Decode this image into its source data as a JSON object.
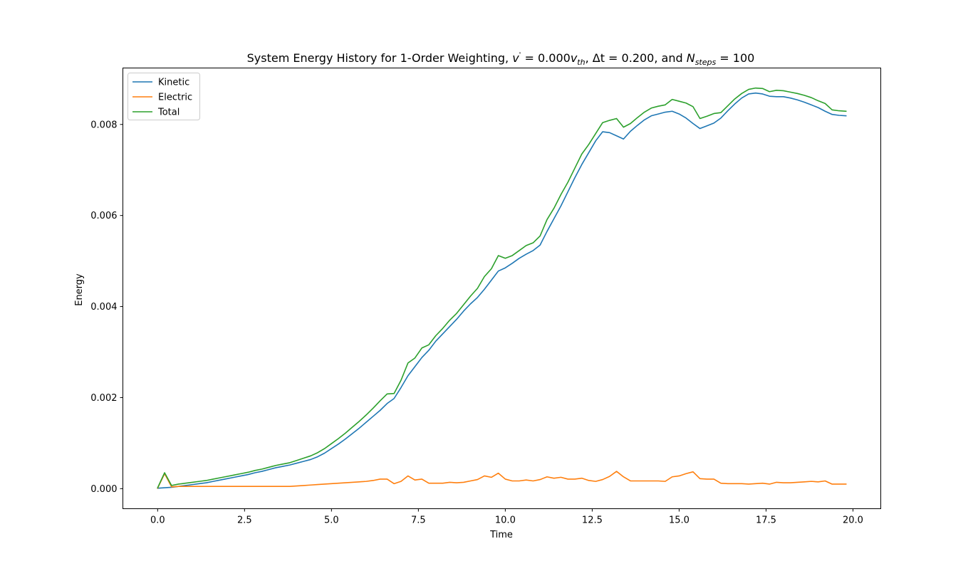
{
  "chart_data": {
    "type": "line",
    "title": {
      "prefix": "System Energy History for 1-Order Weighting, ",
      "v_symbol": "v",
      "v_sup": "'",
      "v_eq": " = 0.000",
      "v_unit": "v",
      "v_unit_sub": "th",
      "sep1": ", ",
      "dt_symbol": "Δt",
      "dt_eq": " = 0.200",
      "sep2": ", and ",
      "n_symbol": "N",
      "n_sub": "steps",
      "n_eq": " = 100"
    },
    "xlabel": "Time",
    "ylabel": "Energy",
    "xlim": [
      -1.0,
      20.8
    ],
    "ylim": [
      -0.00044,
      0.00924
    ],
    "xticks": [
      0.0,
      2.5,
      5.0,
      7.5,
      10.0,
      12.5,
      15.0,
      17.5,
      20.0
    ],
    "xtick_labels": [
      "0.0",
      "2.5",
      "5.0",
      "7.5",
      "10.0",
      "12.5",
      "15.0",
      "17.5",
      "20.0"
    ],
    "yticks": [
      0.0,
      0.002,
      0.004,
      0.006,
      0.008
    ],
    "ytick_labels": [
      "0.000",
      "0.002",
      "0.004",
      "0.006",
      "0.008"
    ],
    "grid": false,
    "legend_position": "top-left",
    "x": [
      0.0,
      0.2,
      0.4,
      0.6,
      0.8,
      1.0,
      1.2,
      1.4,
      1.6,
      1.8,
      2.0,
      2.2,
      2.4,
      2.6,
      2.8,
      3.0,
      3.2,
      3.4,
      3.6,
      3.8,
      4.0,
      4.2,
      4.4,
      4.6,
      4.8,
      5.0,
      5.2,
      5.4,
      5.6,
      5.8,
      6.0,
      6.2,
      6.4,
      6.6,
      6.8,
      7.0,
      7.2,
      7.4,
      7.6,
      7.8,
      8.0,
      8.2,
      8.4,
      8.6,
      8.8,
      9.0,
      9.2,
      9.4,
      9.6,
      9.8,
      10.0,
      10.2,
      10.4,
      10.6,
      10.8,
      11.0,
      11.2,
      11.4,
      11.6,
      11.8,
      12.0,
      12.2,
      12.4,
      12.6,
      12.8,
      13.0,
      13.2,
      13.4,
      13.6,
      13.8,
      14.0,
      14.2,
      14.4,
      14.6,
      14.8,
      15.0,
      15.2,
      15.4,
      15.6,
      15.8,
      16.0,
      16.2,
      16.4,
      16.6,
      16.8,
      17.0,
      17.2,
      17.4,
      17.6,
      17.8,
      18.0,
      18.2,
      18.4,
      18.6,
      18.8,
      19.0,
      19.2,
      19.4,
      19.6,
      19.8
    ],
    "series": [
      {
        "name": "Kinetic",
        "color": "#1f77b4",
        "values": [
          1e-05,
          2e-05,
          3e-05,
          5e-05,
          7e-05,
          9e-05,
          0.00011,
          0.00013,
          0.00016,
          0.00019,
          0.00022,
          0.00025,
          0.00028,
          0.00031,
          0.00035,
          0.00038,
          0.00042,
          0.00046,
          0.00049,
          0.00052,
          0.00056,
          0.0006,
          0.00064,
          0.0007,
          0.00078,
          0.00088,
          0.00098,
          0.00109,
          0.00121,
          0.00133,
          0.00146,
          0.00159,
          0.00172,
          0.00187,
          0.00198,
          0.00222,
          0.00248,
          0.00268,
          0.00288,
          0.00304,
          0.00324,
          0.0034,
          0.00356,
          0.00372,
          0.0039,
          0.00406,
          0.0042,
          0.00438,
          0.00458,
          0.00478,
          0.00485,
          0.00495,
          0.00506,
          0.00515,
          0.00523,
          0.00535,
          0.00565,
          0.00593,
          0.00621,
          0.00652,
          0.00683,
          0.00712,
          0.00738,
          0.00764,
          0.00784,
          0.00782,
          0.00775,
          0.00768,
          0.00785,
          0.00798,
          0.0081,
          0.00819,
          0.00823,
          0.00827,
          0.00829,
          0.00823,
          0.00814,
          0.00802,
          0.00791,
          0.00797,
          0.00803,
          0.00814,
          0.0083,
          0.00845,
          0.00858,
          0.00867,
          0.00869,
          0.00867,
          0.00862,
          0.00861,
          0.00861,
          0.00858,
          0.00854,
          0.00849,
          0.00843,
          0.00837,
          0.00829,
          0.00822,
          0.0082,
          0.00819
        ]
      },
      {
        "name": "Electric",
        "color": "#ff7f0e",
        "values": [
          1e-05,
          0.00033,
          4e-05,
          5e-05,
          5e-05,
          5e-05,
          5e-05,
          5e-05,
          5e-05,
          5e-05,
          5e-05,
          5e-05,
          5e-05,
          5e-05,
          5e-05,
          5e-05,
          5e-05,
          5e-05,
          5e-05,
          5e-05,
          6e-05,
          7e-05,
          8e-05,
          9e-05,
          0.0001,
          0.00011,
          0.00012,
          0.00013,
          0.00014,
          0.00015,
          0.00016,
          0.00018,
          0.00021,
          0.00021,
          0.00011,
          0.00016,
          0.00028,
          0.00019,
          0.00021,
          0.00012,
          0.00012,
          0.00012,
          0.00014,
          0.00013,
          0.00014,
          0.00017,
          0.0002,
          0.00028,
          0.00025,
          0.00034,
          0.00021,
          0.00017,
          0.00017,
          0.00019,
          0.00017,
          0.0002,
          0.00026,
          0.00023,
          0.00025,
          0.00021,
          0.00021,
          0.00023,
          0.00018,
          0.00016,
          0.0002,
          0.00027,
          0.00038,
          0.00026,
          0.00017,
          0.00017,
          0.00017,
          0.00017,
          0.00017,
          0.00016,
          0.00026,
          0.00028,
          0.00033,
          0.00037,
          0.00022,
          0.00021,
          0.00021,
          0.00012,
          0.00011,
          0.00011,
          0.00011,
          0.0001,
          0.00011,
          0.00012,
          0.0001,
          0.00014,
          0.00013,
          0.00013,
          0.00014,
          0.00015,
          0.00016,
          0.00015,
          0.00017,
          0.0001,
          0.0001,
          0.0001
        ]
      },
      {
        "name": "Total",
        "color": "#2ca02c",
        "values": [
          2e-05,
          0.00035,
          7e-05,
          0.0001,
          0.00012,
          0.00014,
          0.00016,
          0.00018,
          0.00021,
          0.00024,
          0.00027,
          0.0003,
          0.00033,
          0.00036,
          0.0004,
          0.00043,
          0.00047,
          0.00051,
          0.00054,
          0.00057,
          0.00062,
          0.00067,
          0.00072,
          0.00079,
          0.00088,
          0.00099,
          0.0011,
          0.00122,
          0.00135,
          0.00148,
          0.00162,
          0.00177,
          0.00193,
          0.00208,
          0.00209,
          0.00238,
          0.00276,
          0.00287,
          0.00309,
          0.00316,
          0.00336,
          0.00352,
          0.0037,
          0.00385,
          0.00404,
          0.00423,
          0.0044,
          0.00466,
          0.00483,
          0.00512,
          0.00506,
          0.00512,
          0.00523,
          0.00534,
          0.0054,
          0.00555,
          0.00591,
          0.00616,
          0.00646,
          0.00673,
          0.00704,
          0.00735,
          0.00756,
          0.0078,
          0.00804,
          0.00809,
          0.00813,
          0.00794,
          0.00802,
          0.00815,
          0.00827,
          0.00836,
          0.0084,
          0.00843,
          0.00855,
          0.00851,
          0.00847,
          0.00839,
          0.00813,
          0.00818,
          0.00824,
          0.00826,
          0.00841,
          0.00856,
          0.00868,
          0.00877,
          0.0088,
          0.00879,
          0.00872,
          0.00875,
          0.00874,
          0.00871,
          0.00868,
          0.00864,
          0.00859,
          0.00852,
          0.00846,
          0.00832,
          0.0083,
          0.00829
        ]
      }
    ]
  }
}
